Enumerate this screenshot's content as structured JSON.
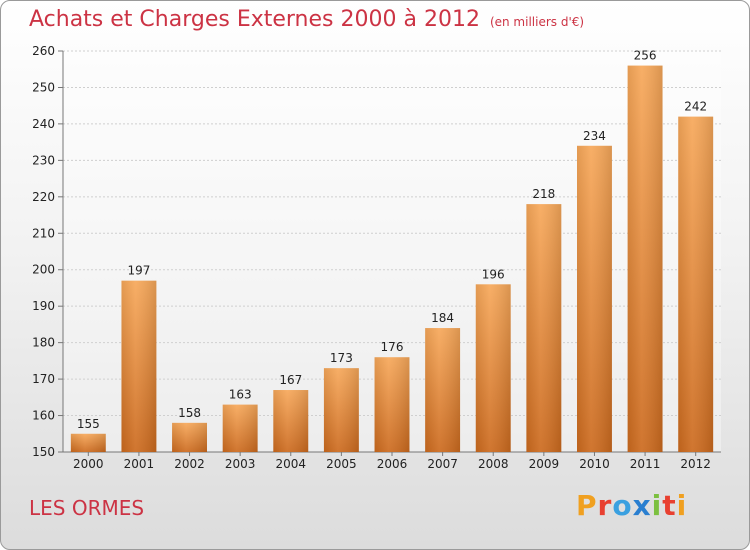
{
  "header": {
    "title": "Achats et Charges Externes 2000 à 2012",
    "subtitle": "(en milliers d'€)"
  },
  "footer": {
    "commune": "LES ORMES",
    "logo_letters": [
      "P",
      "r",
      "o",
      "x",
      "i",
      "t",
      "i"
    ]
  },
  "colors": {
    "title": "#cc3344",
    "bar_top": "#f7a85a",
    "bar_bottom": "#cc6a1e",
    "grid": "#cfcfcf"
  },
  "chart_data": {
    "type": "bar",
    "title": "Achats et Charges Externes 2000 à 2012",
    "subtitle": "(en milliers d'€)",
    "categories": [
      "2000",
      "2001",
      "2002",
      "2003",
      "2004",
      "2005",
      "2006",
      "2007",
      "2008",
      "2009",
      "2010",
      "2011",
      "2012"
    ],
    "values": [
      155,
      197,
      158,
      163,
      167,
      173,
      176,
      184,
      196,
      218,
      234,
      256,
      242
    ],
    "ylim": [
      150,
      260
    ],
    "yticks": [
      150,
      160,
      170,
      180,
      190,
      200,
      210,
      220,
      230,
      240,
      250,
      260
    ],
    "grid": true,
    "legend": "none"
  }
}
